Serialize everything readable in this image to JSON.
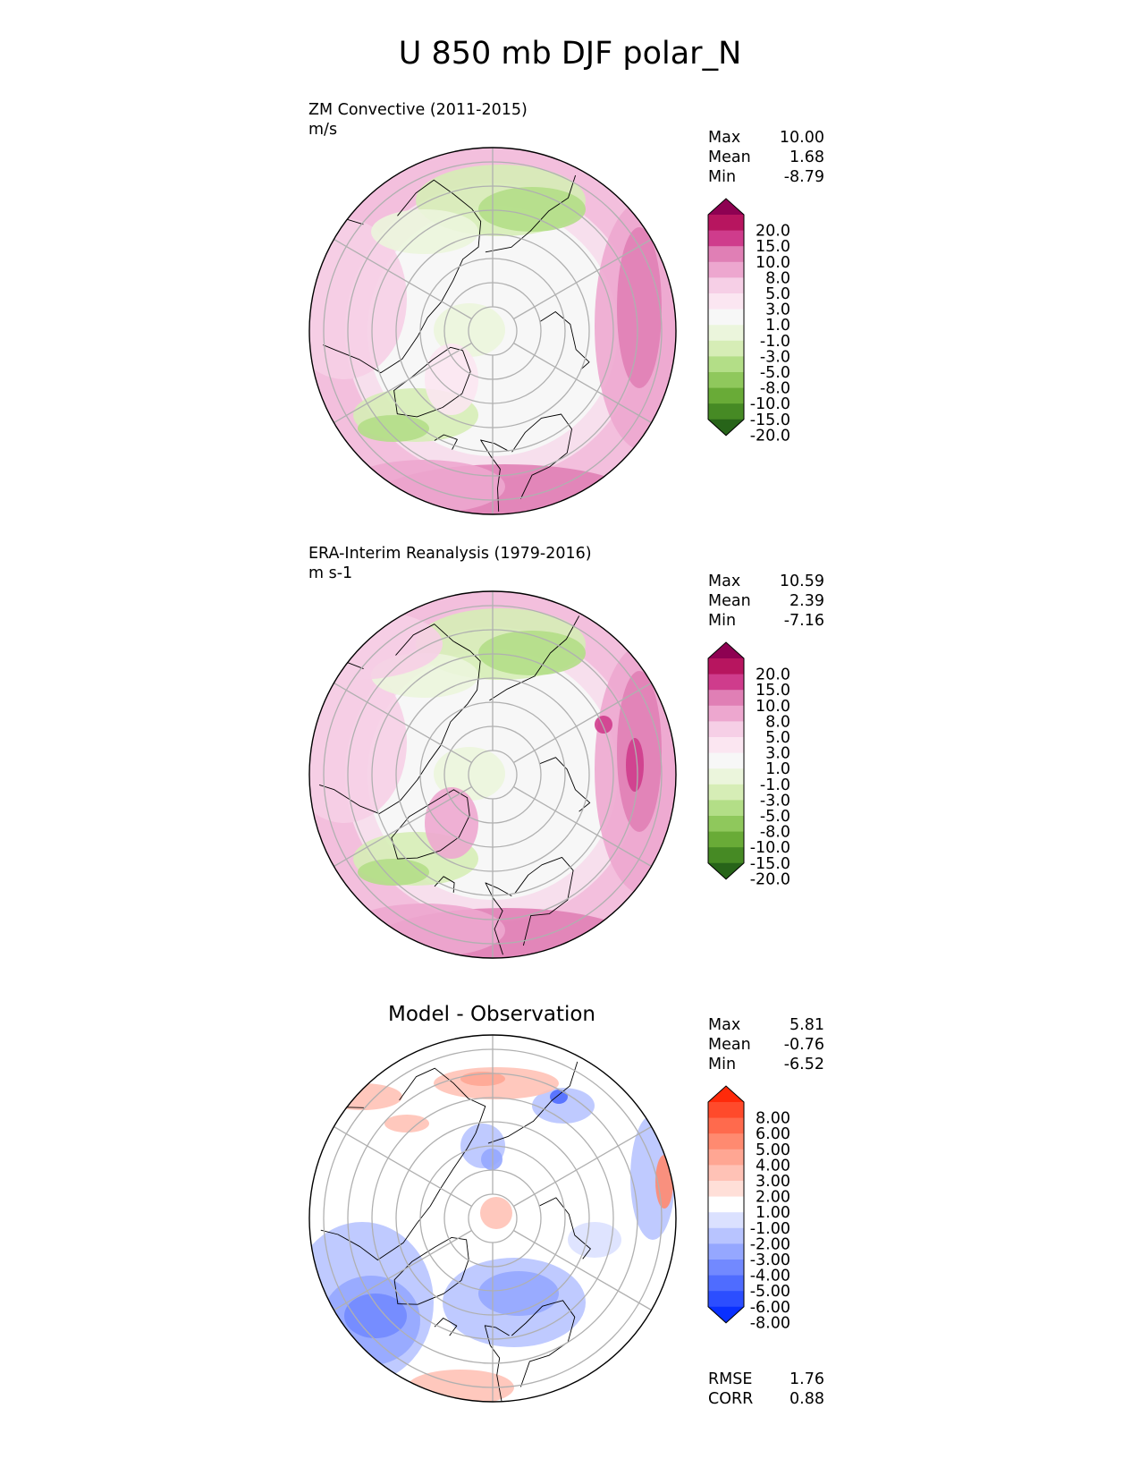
{
  "figure": {
    "title": "U 850 mb DJF polar_N"
  },
  "panels": [
    {
      "id": "test",
      "title": "ZM Convective (2011-2015)",
      "units": "m/s",
      "stats": [
        {
          "label": "Max",
          "value": "10.00"
        },
        {
          "label": "Mean",
          "value": "1.68"
        },
        {
          "label": "Min",
          "value": "-8.79"
        }
      ],
      "colorbar": {
        "labels": [
          "20.0",
          "15.0",
          "10.0",
          "8.0",
          "5.0",
          "3.0",
          "1.0",
          "-1.0",
          "-3.0",
          "-5.0",
          "-8.0",
          "-10.0",
          "-15.0",
          "-20.0"
        ],
        "colors": [
          "#8e0152",
          "#b7155f",
          "#cf3c8c",
          "#e07fb5",
          "#eda7cf",
          "#f6cfe6",
          "#fbe6f1",
          "#f7f7f7",
          "#ebf5dc",
          "#d6edb6",
          "#b3de87",
          "#8fc85c",
          "#69ab37",
          "#468a24",
          "#276419"
        ]
      }
    },
    {
      "id": "reference",
      "title": "ERA-Interim Reanalysis (1979-2016)",
      "units": "m s-1",
      "stats": [
        {
          "label": "Max",
          "value": "10.59"
        },
        {
          "label": "Mean",
          "value": "2.39"
        },
        {
          "label": "Min",
          "value": "-7.16"
        }
      ],
      "colorbar": {
        "labels": [
          "20.0",
          "15.0",
          "10.0",
          "8.0",
          "5.0",
          "3.0",
          "1.0",
          "-1.0",
          "-3.0",
          "-5.0",
          "-8.0",
          "-10.0",
          "-15.0",
          "-20.0"
        ],
        "colors": [
          "#8e0152",
          "#b7155f",
          "#cf3c8c",
          "#e07fb5",
          "#eda7cf",
          "#f6cfe6",
          "#fbe6f1",
          "#f7f7f7",
          "#ebf5dc",
          "#d6edb6",
          "#b3de87",
          "#8fc85c",
          "#69ab37",
          "#468a24",
          "#276419"
        ]
      }
    },
    {
      "id": "difference",
      "title": "Model - Observation",
      "stats": [
        {
          "label": "Max",
          "value": "5.81"
        },
        {
          "label": "Mean",
          "value": "-0.76"
        },
        {
          "label": "Min",
          "value": "-6.52"
        }
      ],
      "extra_stats": [
        {
          "label": "RMSE",
          "value": "1.76"
        },
        {
          "label": "CORR",
          "value": "0.88"
        }
      ],
      "colorbar": {
        "labels": [
          "8.00",
          "6.00",
          "5.00",
          "4.00",
          "3.00",
          "2.00",
          "1.00",
          "-1.00",
          "-2.00",
          "-3.00",
          "-4.00",
          "-5.00",
          "-6.00",
          "-8.00"
        ],
        "colors": [
          "#ff2a0a",
          "#ff4a2b",
          "#ff6a4d",
          "#ff8a70",
          "#ffa693",
          "#ffc2b6",
          "#ffdfd8",
          "#ffffff",
          "#dbe1ff",
          "#b8c4ff",
          "#95a7ff",
          "#7289ff",
          "#4f6cff",
          "#2c4eff",
          "#0930ff"
        ]
      }
    }
  ],
  "chart_data": [
    {
      "type": "heatmap",
      "projection": "north polar stereographic",
      "title": "ZM Convective (2011-2015)",
      "units": "m/s",
      "stats": {
        "max": 10.0,
        "mean": 1.68,
        "min": -8.79
      },
      "levels": [
        -20,
        -15,
        -10,
        -8,
        -5,
        -3,
        -1,
        1,
        3,
        5,
        8,
        10,
        15,
        20
      ],
      "grid": true,
      "colormap": "PiYG (reversed)"
    },
    {
      "type": "heatmap",
      "projection": "north polar stereographic",
      "title": "ERA-Interim Reanalysis (1979-2016)",
      "units": "m s-1",
      "stats": {
        "max": 10.59,
        "mean": 2.39,
        "min": -7.16
      },
      "levels": [
        -20,
        -15,
        -10,
        -8,
        -5,
        -3,
        -1,
        1,
        3,
        5,
        8,
        10,
        15,
        20
      ],
      "grid": true,
      "colormap": "PiYG (reversed)"
    },
    {
      "type": "heatmap",
      "projection": "north polar stereographic",
      "title": "Model - Observation",
      "stats": {
        "max": 5.81,
        "mean": -0.76,
        "min": -6.52,
        "rmse": 1.76,
        "corr": 0.88
      },
      "levels": [
        -8,
        -6,
        -5,
        -4,
        -3,
        -2,
        -1,
        1,
        2,
        3,
        4,
        5,
        6,
        8
      ],
      "grid": true,
      "colormap": "bwr"
    }
  ]
}
